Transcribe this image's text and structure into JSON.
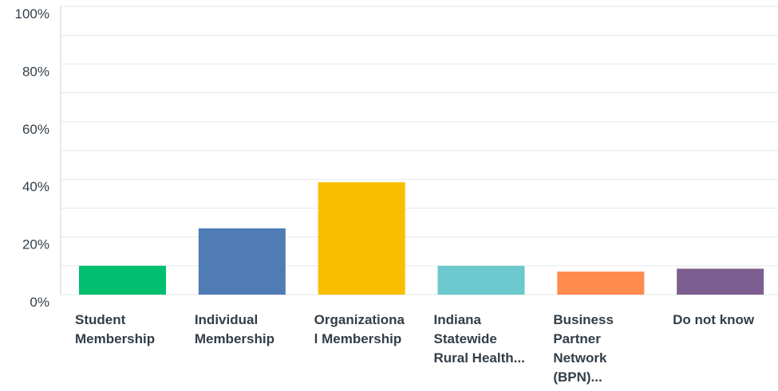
{
  "chart_data": {
    "type": "bar",
    "categories": [
      "Student Membership",
      "Individual Membership",
      "Organizational Membership",
      "Indiana Statewide Rural Health...",
      "Business Partner Network (BPN)...",
      "Do not know"
    ],
    "values": [
      10,
      23,
      39,
      10,
      8,
      9
    ],
    "colors": [
      "#00bf6f",
      "#507cb6",
      "#f9be00",
      "#6bc8cd",
      "#ff8b4f",
      "#7d5e90"
    ],
    "ylim": [
      0,
      100
    ],
    "yticks": [
      {
        "value": 0,
        "label": "0%"
      },
      {
        "value": 20,
        "label": "20%"
      },
      {
        "value": 40,
        "label": "40%"
      },
      {
        "value": 60,
        "label": "60%"
      },
      {
        "value": 80,
        "label": "80%"
      },
      {
        "value": 100,
        "label": "100%"
      }
    ],
    "minor_yticks": [
      10,
      30,
      50,
      70,
      90
    ],
    "grid": true
  }
}
